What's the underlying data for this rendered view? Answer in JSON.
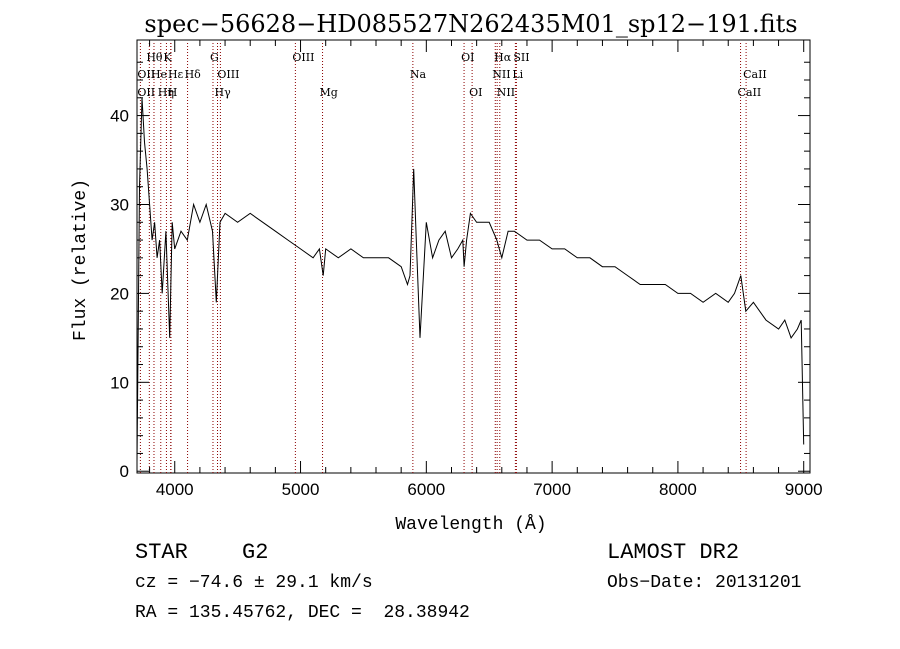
{
  "chart_data": {
    "type": "line",
    "title": "spec−56628−HD085527N262435M01_sp12−191.fits",
    "xlabel": "Wavelength (Å)",
    "ylabel": "Flux (relative)",
    "xlim": [
      3700,
      9050
    ],
    "ylim": [
      -0.2,
      48.5
    ],
    "x_ticks": [
      4000,
      5000,
      6000,
      7000,
      8000,
      9000
    ],
    "x_tick_labels": [
      "4000",
      "5000",
      "6000",
      "7000",
      "8000",
      "9000"
    ],
    "y_ticks": [
      0,
      10,
      20,
      30,
      40
    ],
    "y_tick_labels": [
      "0",
      "10",
      "20",
      "30",
      "40"
    ],
    "grid": false,
    "line_color": "#000000",
    "marker_color": "#8b0000",
    "series": [
      {
        "x": [
          3700,
          3720,
          3740,
          3760,
          3780,
          3800,
          3820,
          3840,
          3860,
          3880,
          3900,
          3930,
          3960,
          3980,
          4000,
          4050,
          4100,
          4150,
          4200,
          4250,
          4300,
          4330,
          4360,
          4400,
          4500,
          4600,
          4700,
          4800,
          4900,
          5000,
          5100,
          5150,
          5180,
          5200,
          5300,
          5400,
          5500,
          5600,
          5700,
          5800,
          5850,
          5870,
          5890,
          5900,
          5920,
          5950,
          6000,
          6050,
          6100,
          6150,
          6200,
          6250,
          6290,
          6300,
          6320,
          6350,
          6400,
          6500,
          6560,
          6600,
          6650,
          6700,
          6800,
          6900,
          7000,
          7100,
          7200,
          7300,
          7400,
          7500,
          7600,
          7700,
          7800,
          7900,
          8000,
          8100,
          8200,
          8300,
          8400,
          8450,
          8500,
          8540,
          8600,
          8700,
          8800,
          8850,
          8900,
          8950,
          8980,
          9000
        ],
        "y": [
          1,
          32,
          42,
          37,
          34,
          30,
          26,
          28,
          24,
          26,
          20,
          27,
          15,
          28,
          25,
          27,
          26,
          30,
          28,
          30,
          27,
          19,
          28,
          29,
          28,
          29,
          28,
          27,
          26,
          25,
          24,
          25,
          22,
          25,
          24,
          25,
          24,
          24,
          24,
          23,
          21,
          22,
          30,
          34,
          26,
          15,
          28,
          24,
          26,
          27,
          24,
          25,
          26,
          23,
          26,
          29,
          28,
          28,
          26,
          24,
          27,
          27,
          26,
          26,
          25,
          25,
          24,
          24,
          23,
          23,
          22,
          21,
          21,
          21,
          20,
          20,
          19,
          20,
          19,
          20,
          22,
          18,
          19,
          17,
          16,
          17,
          15,
          16,
          17,
          3
        ]
      }
    ],
    "lines": [
      {
        "label": "Hθ",
        "wl": 3798,
        "row": 1
      },
      {
        "label": "K",
        "wl": 3934,
        "row": 1
      },
      {
        "label": "G",
        "wl": 4304,
        "row": 1
      },
      {
        "label": "OIII",
        "wl": 4959,
        "row": 1
      },
      {
        "label": "OI",
        "wl": 6300,
        "row": 1
      },
      {
        "label": "Hα",
        "wl": 6563,
        "row": 1
      },
      {
        "label": "SII",
        "wl": 6716,
        "row": 1
      },
      {
        "label": "OII",
        "wl": 3727,
        "row": 2
      },
      {
        "label": "He",
        "wl": 3835,
        "row": 2
      },
      {
        "label": "Hε",
        "wl": 3970,
        "row": 2
      },
      {
        "label": "Hδ",
        "wl": 4102,
        "row": 2
      },
      {
        "label": "OIII",
        "wl": 4363,
        "row": 2
      },
      {
        "label": "Na",
        "wl": 5893,
        "row": 2
      },
      {
        "label": "NII",
        "wl": 6548,
        "row": 2
      },
      {
        "label": "Li",
        "wl": 6708,
        "row": 2
      },
      {
        "label": "CaII",
        "wl": 8542,
        "row": 2
      },
      {
        "label": "OII",
        "wl": 3727,
        "row": 3
      },
      {
        "label": "Hη",
        "wl": 3889,
        "row": 3
      },
      {
        "label": "H",
        "wl": 3968,
        "row": 3
      },
      {
        "label": "Hγ",
        "wl": 4340,
        "row": 3
      },
      {
        "label": "Mg",
        "wl": 5175,
        "row": 3
      },
      {
        "label": "OI",
        "wl": 6364,
        "row": 3
      },
      {
        "label": "NII",
        "wl": 6584,
        "row": 3
      },
      {
        "label": "CaII",
        "wl": 8498,
        "row": 3
      }
    ]
  },
  "info": {
    "object_class": "STAR",
    "subclass": "G2",
    "survey": "LAMOST DR2",
    "redshift": "cz = −74.6 ± 29.1 km/s",
    "obs_date": "Obs−Date: 20131201",
    "coords": "RA = 135.45762, DEC =  28.38942"
  }
}
